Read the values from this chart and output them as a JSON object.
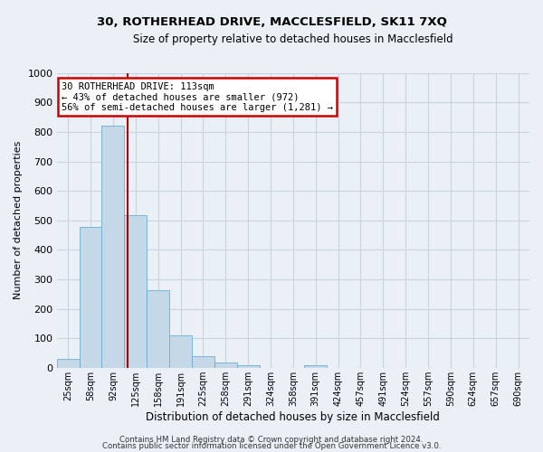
{
  "title": "30, ROTHERHEAD DRIVE, MACCLESFIELD, SK11 7XQ",
  "subtitle": "Size of property relative to detached houses in Macclesfield",
  "xlabel": "Distribution of detached houses by size in Macclesfield",
  "ylabel": "Number of detached properties",
  "bar_color": "#c5d8e8",
  "bar_edge_color": "#6aafd4",
  "grid_color": "#c8d4e0",
  "background_color": "#eaf0f6",
  "bin_labels": [
    "25sqm",
    "58sqm",
    "92sqm",
    "125sqm",
    "158sqm",
    "191sqm",
    "225sqm",
    "258sqm",
    "291sqm",
    "324sqm",
    "358sqm",
    "391sqm",
    "424sqm",
    "457sqm",
    "491sqm",
    "524sqm",
    "557sqm",
    "590sqm",
    "624sqm",
    "657sqm",
    "690sqm"
  ],
  "bar_heights": [
    30,
    478,
    820,
    518,
    263,
    110,
    38,
    18,
    8,
    0,
    0,
    8,
    0,
    0,
    0,
    0,
    0,
    0,
    0,
    0,
    0
  ],
  "ylim": [
    0,
    1000
  ],
  "yticks": [
    0,
    100,
    200,
    300,
    400,
    500,
    600,
    700,
    800,
    900,
    1000
  ],
  "annotation_title": "30 ROTHERHEAD DRIVE: 113sqm",
  "annotation_line1": "← 43% of detached houses are smaller (972)",
  "annotation_line2": "56% of semi-detached houses are larger (1,281) →",
  "annotation_box_color": "#ffffff",
  "annotation_box_edge": "#cc0000",
  "property_line_color": "#aa0000",
  "footer_line1": "Contains HM Land Registry data © Crown copyright and database right 2024.",
  "footer_line2": "Contains public sector information licensed under the Open Government Licence v3.0.",
  "title_fontsize": 9.5,
  "subtitle_fontsize": 8.5
}
